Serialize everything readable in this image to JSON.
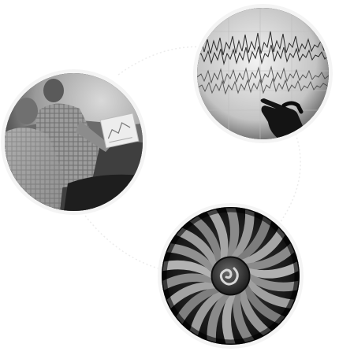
{
  "images": [
    {
      "name": "people-with-clipboard-photo",
      "tone": "grayscale"
    },
    {
      "name": "data-graph-touch-photo",
      "tone": "grayscale"
    },
    {
      "name": "jet-engine-fan-photo",
      "tone": "grayscale"
    }
  ],
  "colors": {
    "background": "#ffffff",
    "connector": "#e6e6e6",
    "ring": "#f4f4f4"
  }
}
